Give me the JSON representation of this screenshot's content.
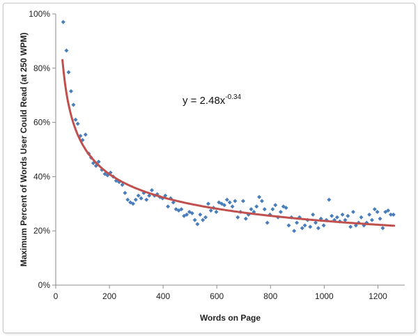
{
  "chart_data": {
    "type": "scatter",
    "title": "",
    "xlabel": "Words on Page",
    "ylabel": "Maximum Percent of Words User Could Read (at 250 WPM)",
    "xlim": [
      0,
      1300
    ],
    "ylim": [
      0,
      100
    ],
    "x_ticks": [
      0,
      200,
      400,
      600,
      800,
      1000,
      1200
    ],
    "y_ticks": [
      0,
      20,
      40,
      60,
      80,
      100
    ],
    "x_tick_labels": [
      "0",
      "200",
      "400",
      "600",
      "800",
      "1000",
      "1200"
    ],
    "y_tick_labels": [
      "0%",
      "20%",
      "40%",
      "60%",
      "80%",
      "100%"
    ],
    "grid": false,
    "annotation": {
      "text_base": "y = 2.48x",
      "text_exponent": "-0.34"
    },
    "series": [
      {
        "kind": "scatter",
        "color": "#4a7ebb",
        "points": [
          [
            28,
            97
          ],
          [
            40,
            86.5
          ],
          [
            48,
            78.5
          ],
          [
            57,
            71.5
          ],
          [
            66,
            66.5
          ],
          [
            74,
            61
          ],
          [
            82,
            59.5
          ],
          [
            92,
            55
          ],
          [
            100,
            53.5
          ],
          [
            111,
            55.5
          ],
          [
            123,
            48.5
          ],
          [
            132,
            47
          ],
          [
            140,
            45
          ],
          [
            150,
            44
          ],
          [
            160,
            45.5
          ],
          [
            172,
            42.5
          ],
          [
            183,
            41
          ],
          [
            193,
            40.5
          ],
          [
            204,
            41.5
          ],
          [
            214,
            40
          ],
          [
            225,
            38.5
          ],
          [
            236,
            38
          ],
          [
            248,
            37
          ],
          [
            258,
            34
          ],
          [
            268,
            31.5
          ],
          [
            278,
            30.5
          ],
          [
            288,
            30
          ],
          [
            298,
            31.5
          ],
          [
            308,
            33
          ],
          [
            318,
            32
          ],
          [
            328,
            34
          ],
          [
            338,
            31.5
          ],
          [
            348,
            33
          ],
          [
            358,
            35
          ],
          [
            368,
            33
          ],
          [
            378,
            33.5
          ],
          [
            388,
            32.5
          ],
          [
            398,
            32
          ],
          [
            408,
            33
          ],
          [
            418,
            29
          ],
          [
            428,
            32
          ],
          [
            438,
            30.5
          ],
          [
            448,
            28
          ],
          [
            458,
            27.5
          ],
          [
            468,
            28
          ],
          [
            478,
            25.5
          ],
          [
            488,
            26
          ],
          [
            498,
            27
          ],
          [
            508,
            26.5
          ],
          [
            518,
            24
          ],
          [
            528,
            22.5
          ],
          [
            538,
            26
          ],
          [
            548,
            24
          ],
          [
            558,
            25
          ],
          [
            568,
            30
          ],
          [
            578,
            27.5
          ],
          [
            588,
            28.5
          ],
          [
            598,
            27
          ],
          [
            608,
            30.5
          ],
          [
            618,
            30
          ],
          [
            628,
            29.5
          ],
          [
            638,
            31.5
          ],
          [
            648,
            30.5
          ],
          [
            658,
            29
          ],
          [
            668,
            31
          ],
          [
            678,
            25
          ],
          [
            688,
            27
          ],
          [
            698,
            31
          ],
          [
            708,
            24.5
          ],
          [
            718,
            26
          ],
          [
            728,
            28
          ],
          [
            738,
            27
          ],
          [
            748,
            29
          ],
          [
            758,
            32.5
          ],
          [
            768,
            31
          ],
          [
            778,
            28
          ],
          [
            788,
            23
          ],
          [
            798,
            26
          ],
          [
            808,
            28
          ],
          [
            818,
            29.5
          ],
          [
            828,
            25
          ],
          [
            838,
            27
          ],
          [
            848,
            29
          ],
          [
            858,
            28.5
          ],
          [
            868,
            22
          ],
          [
            878,
            25
          ],
          [
            888,
            20
          ],
          [
            898,
            23
          ],
          [
            908,
            25
          ],
          [
            918,
            21
          ],
          [
            928,
            22
          ],
          [
            938,
            24
          ],
          [
            948,
            21.5
          ],
          [
            958,
            26
          ],
          [
            968,
            23
          ],
          [
            978,
            21
          ],
          [
            988,
            24.5
          ],
          [
            998,
            22
          ],
          [
            1008,
            24
          ],
          [
            1018,
            31.5
          ],
          [
            1028,
            25.5
          ],
          [
            1038,
            24
          ],
          [
            1048,
            25
          ],
          [
            1058,
            23.5
          ],
          [
            1068,
            26
          ],
          [
            1078,
            24
          ],
          [
            1088,
            25.5
          ],
          [
            1098,
            21.5
          ],
          [
            1108,
            27
          ],
          [
            1118,
            22
          ],
          [
            1128,
            23
          ],
          [
            1138,
            25
          ],
          [
            1148,
            22
          ],
          [
            1158,
            23
          ],
          [
            1168,
            26
          ],
          [
            1178,
            24
          ],
          [
            1188,
            28
          ],
          [
            1198,
            27
          ],
          [
            1208,
            24.5
          ],
          [
            1218,
            21
          ],
          [
            1228,
            27
          ],
          [
            1238,
            27.5
          ],
          [
            1248,
            26
          ],
          [
            1258,
            26
          ]
        ]
      },
      {
        "kind": "trendline",
        "color": "#c0504d",
        "model": "power",
        "coefficient": 2.48,
        "exponent": -0.34,
        "x_range": [
          25,
          1260
        ]
      }
    ]
  }
}
